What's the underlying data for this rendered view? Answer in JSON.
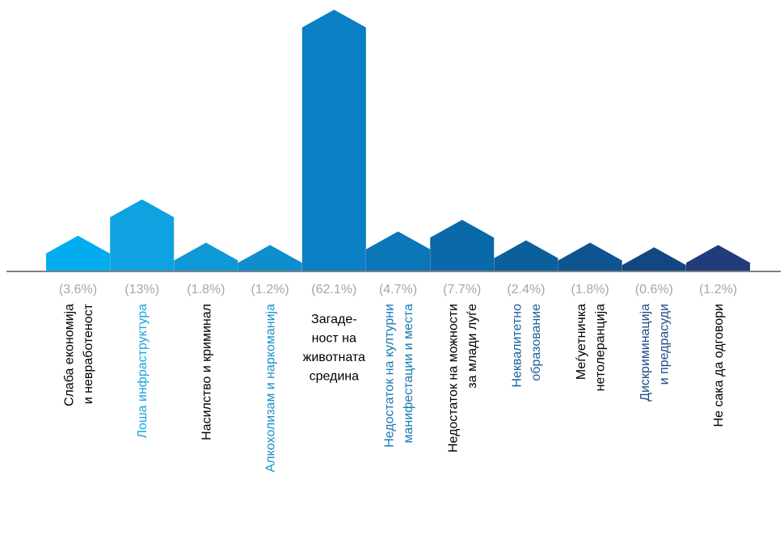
{
  "chart_data": {
    "type": "bar",
    "bar_shape": "house (rectangle with triangular roof)",
    "grid": false,
    "legend": "none",
    "ylim": [
      0,
      62.1
    ],
    "categories": [
      {
        "lines": [
          "Слаба економија",
          "и невработеност"
        ],
        "value": 3.6,
        "percent_label": "(3.6%)",
        "bar_color": "#00adef",
        "label_color": "#000000"
      },
      {
        "lines": [
          "Лоша инфраструктура"
        ],
        "value": 13,
        "percent_label": "(13%)",
        "bar_color": "#0ea2e0",
        "label_color": "#1aa3df"
      },
      {
        "lines": [
          "Насилство и криминал"
        ],
        "value": 1.8,
        "percent_label": "(1.8%)",
        "bar_color": "#0f98d6",
        "label_color": "#000000"
      },
      {
        "lines": [
          "Алкохолизам и наркоманија"
        ],
        "value": 1.2,
        "percent_label": "(1.2%)",
        "bar_color": "#0f8ecd",
        "label_color": "#1b8fcb"
      },
      {
        "lines": [
          "Загаде-",
          "ност на",
          "животната",
          "средина"
        ],
        "value": 62.1,
        "percent_label": "(62.1%)",
        "bar_color": "#0a7fc4",
        "label_color": "#000000",
        "orientation": "horizontal"
      },
      {
        "lines": [
          "Недостаток на културни",
          "манифестации и места"
        ],
        "value": 4.7,
        "percent_label": "(4.7%)",
        "bar_color": "#0b76b8",
        "label_color": "#1679b5"
      },
      {
        "lines": [
          "Недостаток на можности",
          "за млади луѓе"
        ],
        "value": 7.7,
        "percent_label": "(7.7%)",
        "bar_color": "#0a6aa9",
        "label_color": "#000000"
      },
      {
        "lines": [
          "Неквалитетно",
          "образование"
        ],
        "value": 2.4,
        "percent_label": "(2.4%)",
        "bar_color": "#0c5f9d",
        "label_color": "#1b5f9a"
      },
      {
        "lines": [
          "Меѓуетничка",
          "нетолеранција"
        ],
        "value": 1.8,
        "percent_label": "(1.8%)",
        "bar_color": "#0d5490",
        "label_color": "#000000"
      },
      {
        "lines": [
          "Дискриминација",
          "и предрасуди"
        ],
        "value": 0.6,
        "percent_label": "(0.6%)",
        "bar_color": "#114783",
        "label_color": "#1e4b86"
      },
      {
        "lines": [
          "Не сака да одговори"
        ],
        "value": 1.2,
        "percent_label": "(1.2%)",
        "bar_color": "#223b7c",
        "label_color": "#000000"
      }
    ]
  }
}
